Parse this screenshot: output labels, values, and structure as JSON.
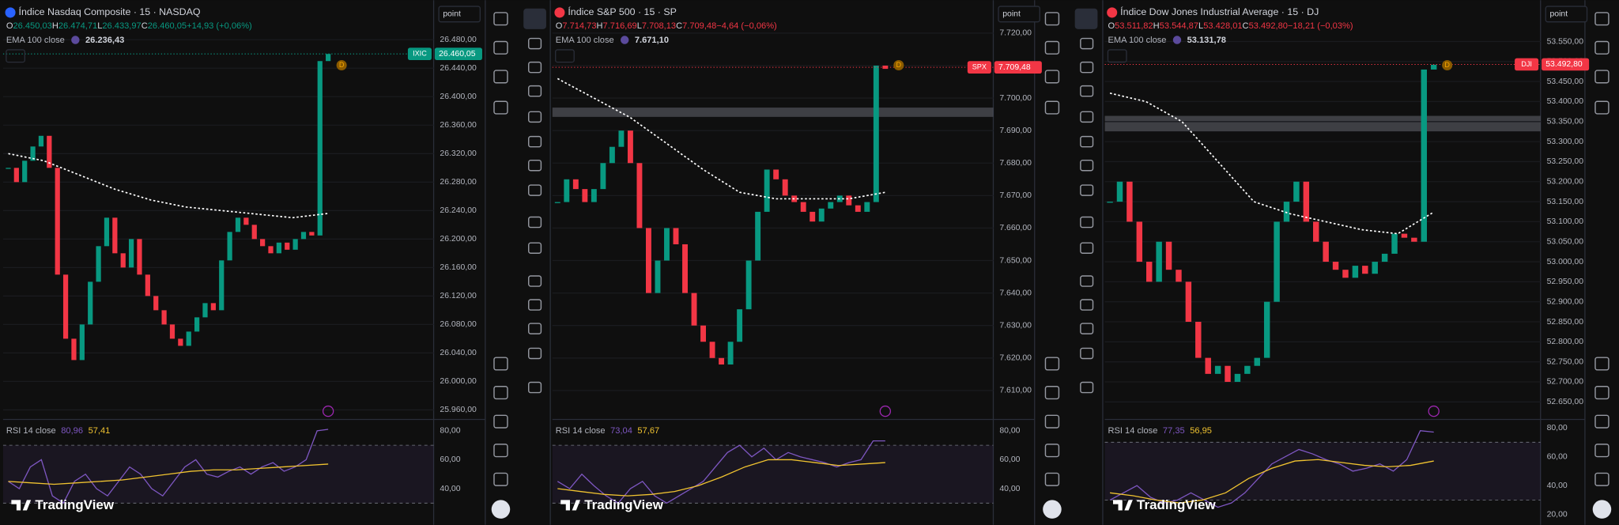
{
  "brand": "TradingView",
  "badge": "D",
  "panels": [
    {
      "title": "Índice Nasdaq Composite · 15 · NASDAQ",
      "ohlc": [
        {
          "label": "O",
          "value": "26.450,03"
        },
        {
          "label": "H",
          "value": "26.474,71"
        },
        {
          "label": "L",
          "value": "26.433,97"
        },
        {
          "label": "C",
          "value": "26.460,05"
        }
      ],
      "change": "+14,93 (+0,06%)",
      "change_color": "#089981",
      "ema_label": "EMA 100 close",
      "ema_value": "26.236,43",
      "symbol_tag": "IXIC",
      "tag_color": "#089981",
      "last_price": {
        "value": 26460.05,
        "label": "26.460,05"
      },
      "interval_button": "point",
      "price_axis": {
        "lim": [
          25948,
          26492
        ],
        "ticks": [
          {
            "value": 26480,
            "label": "26.480,00"
          },
          {
            "value": 26440,
            "label": "26.440,00"
          },
          {
            "value": 26400,
            "label": "26.400,00"
          },
          {
            "value": 26360,
            "label": "26.360,00"
          },
          {
            "value": 26320,
            "label": "26.320,00"
          },
          {
            "value": 26280,
            "label": "26.280,00"
          },
          {
            "value": 26240,
            "label": "26.240,00"
          },
          {
            "value": 26200,
            "label": "26.200,00"
          },
          {
            "value": 26160,
            "label": "26.160,00"
          },
          {
            "value": 26120,
            "label": "26.120,00"
          },
          {
            "value": 26080,
            "label": "26.080,00"
          },
          {
            "value": 26040,
            "label": "26.040,00"
          },
          {
            "value": 26000,
            "label": "26.000,00"
          },
          {
            "value": 25960,
            "label": "25.960,00"
          }
        ]
      },
      "closes": [
        26300,
        26280,
        26310,
        26330,
        26345,
        26300,
        26150,
        26060,
        26030,
        26080,
        26140,
        26190,
        26230,
        26180,
        26160,
        26200,
        26150,
        26120,
        26100,
        26080,
        26060,
        26050,
        26070,
        26090,
        26110,
        26100,
        26170,
        26210,
        26230,
        26220,
        26200,
        26190,
        26180,
        26195,
        26185,
        26200,
        26210,
        26205,
        26450,
        26460
      ],
      "ema": [
        26320,
        26310,
        26290,
        26270,
        26255,
        26245,
        26240,
        26235,
        26230,
        26236
      ],
      "rsi_label": "RSI 14 close",
      "rsi_value": "80,96",
      "rsi_ma_value": "57,41",
      "rsi_axis": {
        "lim": [
          20.7,
          86.4
        ],
        "ticks": [
          {
            "value": 80,
            "label": "80,00"
          },
          {
            "value": 60,
            "label": "60,00"
          },
          {
            "value": 40,
            "label": "40,00"
          }
        ]
      },
      "rsi_bands": [
        70,
        30
      ],
      "rsi": [
        45,
        40,
        55,
        60,
        35,
        30,
        45,
        50,
        40,
        35,
        45,
        55,
        50,
        40,
        35,
        45,
        55,
        60,
        50,
        48,
        52,
        55,
        50,
        55,
        58,
        52,
        55,
        60,
        80,
        81
      ],
      "rsi_ma": [
        45,
        44,
        43,
        44,
        45,
        46,
        48,
        50,
        52,
        53,
        53,
        54,
        55,
        56,
        57
      ]
    },
    {
      "title": "Índice S&P 500 · 15 · SP",
      "ohlc": [
        {
          "label": "O",
          "value": "7.714,73"
        },
        {
          "label": "H",
          "value": "7.716,69"
        },
        {
          "label": "L",
          "value": "7.708,13"
        },
        {
          "label": "C",
          "value": "7.709,48"
        }
      ],
      "change": "−4,64 (−0,06%)",
      "change_color": "#f23645",
      "ema_label": "EMA 100 close",
      "ema_value": "7.671,10",
      "symbol_tag": "SPX",
      "tag_color": "#f23645",
      "last_price": {
        "value": 7709.48,
        "label": "7.709,48"
      },
      "interval_button": "point",
      "price_axis": {
        "lim": [
          7601.4,
          7720.6
        ],
        "ticks": [
          {
            "value": 7720,
            "label": "7.720,00"
          },
          {
            "value": 7710,
            "label": "7.710,00"
          },
          {
            "value": 7700,
            "label": "7.700,00"
          },
          {
            "value": 7690,
            "label": "7.690,00"
          },
          {
            "value": 7680,
            "label": "7.680,00"
          },
          {
            "value": 7670,
            "label": "7.670,00"
          },
          {
            "value": 7660,
            "label": "7.660,00"
          },
          {
            "value": 7650,
            "label": "7.650,00"
          },
          {
            "value": 7640,
            "label": "7.640,00"
          },
          {
            "value": 7630,
            "label": "7.630,00"
          },
          {
            "value": 7620,
            "label": "7.620,00"
          },
          {
            "value": 7610,
            "label": "7.610,00"
          }
        ]
      },
      "closes": [
        7668,
        7675,
        7672,
        7668,
        7672,
        7680,
        7685,
        7690,
        7680,
        7660,
        7640,
        7650,
        7660,
        7655,
        7640,
        7630,
        7625,
        7620,
        7618,
        7625,
        7635,
        7650,
        7665,
        7678,
        7675,
        7670,
        7668,
        7665,
        7662,
        7666,
        7668,
        7670,
        7667,
        7665,
        7668,
        7710,
        7709
      ],
      "ema": [
        7706,
        7700,
        7694,
        7686,
        7678,
        7671,
        7669,
        7669,
        7669,
        7671
      ],
      "rsi_label": "RSI 14 close",
      "rsi_value": "73,04",
      "rsi_ma_value": "57,67",
      "rsi_axis": {
        "lim": [
          20.7,
          86.4
        ],
        "ticks": [
          {
            "value": 80,
            "label": "80,00"
          },
          {
            "value": 60,
            "label": "60,00"
          },
          {
            "value": 40,
            "label": "40,00"
          }
        ]
      },
      "rsi_bands": [
        70,
        30
      ],
      "rsi": [
        45,
        40,
        50,
        42,
        35,
        30,
        40,
        45,
        35,
        30,
        35,
        40,
        45,
        55,
        65,
        70,
        62,
        68,
        60,
        65,
        62,
        60,
        58,
        55,
        58,
        60,
        73,
        73
      ],
      "rsi_ma": [
        40,
        38,
        36,
        35,
        36,
        38,
        42,
        48,
        55,
        60,
        60,
        58,
        56,
        57,
        58
      ]
    },
    {
      "title": "Índice Dow Jones Industrial Average · 15 · DJ",
      "ohlc": [
        {
          "label": "O",
          "value": "53.511,82"
        },
        {
          "label": "H",
          "value": "53.544,87"
        },
        {
          "label": "L",
          "value": "53.428,01"
        },
        {
          "label": "C",
          "value": "53.492,80"
        }
      ],
      "change": "−18,21 (−0,03%)",
      "change_color": "#f23645",
      "ema_label": "EMA 100 close",
      "ema_value": "53.131,78",
      "symbol_tag": "DJI",
      "tag_color": "#f23645",
      "last_price": {
        "value": 53492.8,
        "label": "53.492,80"
      },
      "interval_button": "point",
      "price_axis": {
        "lim": [
          52608.7,
          53575.8
        ],
        "ticks": [
          {
            "value": 53550,
            "label": "53.550,00"
          },
          {
            "value": 53500,
            "label": "53.500,00"
          },
          {
            "value": 53450,
            "label": "53.450,00"
          },
          {
            "value": 53400,
            "label": "53.400,00"
          },
          {
            "value": 53350,
            "label": "53.350,00"
          },
          {
            "value": 53300,
            "label": "53.300,00"
          },
          {
            "value": 53250,
            "label": "53.250,00"
          },
          {
            "value": 53200,
            "label": "53.200,00"
          },
          {
            "value": 53150,
            "label": "53.150,00"
          },
          {
            "value": 53100,
            "label": "53.100,00"
          },
          {
            "value": 53050,
            "label": "53.050,00"
          },
          {
            "value": 53000,
            "label": "53.000,00"
          },
          {
            "value": 52950,
            "label": "52.950,00"
          },
          {
            "value": 52900,
            "label": "52.900,00"
          },
          {
            "value": 52850,
            "label": "52.850,00"
          },
          {
            "value": 52800,
            "label": "52.800,00"
          },
          {
            "value": 52750,
            "label": "52.750,00"
          },
          {
            "value": 52700,
            "label": "52.700,00"
          },
          {
            "value": 52650,
            "label": "52.650,00"
          }
        ]
      },
      "closes": [
        53150,
        53200,
        53100,
        53000,
        52950,
        53050,
        52980,
        52950,
        52850,
        52760,
        52720,
        52740,
        52700,
        52720,
        52740,
        52760,
        52900,
        53100,
        53150,
        53200,
        53100,
        53050,
        53000,
        52980,
        52960,
        52990,
        52970,
        53000,
        53020,
        53070,
        53060,
        53050,
        53480,
        53492
      ],
      "ema": [
        53421,
        53400,
        53350,
        53250,
        53150,
        53120,
        53100,
        53080,
        53070,
        53124
      ],
      "rsi_label": "RSI 14 close",
      "rsi_value": "77,35",
      "rsi_ma_value": "56,95",
      "rsi_axis": {
        "lim": [
          18.6,
          84.3
        ],
        "ticks": [
          {
            "value": 80,
            "label": "80,00"
          },
          {
            "value": 60,
            "label": "60,00"
          },
          {
            "value": 40,
            "label": "40,00"
          },
          {
            "value": 20,
            "label": "20,00"
          }
        ]
      },
      "rsi_bands": [
        70,
        30
      ],
      "rsi": [
        30,
        35,
        40,
        32,
        28,
        30,
        35,
        30,
        25,
        28,
        35,
        45,
        55,
        60,
        65,
        62,
        58,
        55,
        50,
        52,
        55,
        50,
        58,
        78,
        77
      ],
      "rsi_ma": [
        35,
        33,
        30,
        28,
        30,
        35,
        45,
        52,
        57,
        58,
        56,
        54,
        53,
        54,
        57
      ]
    }
  ]
}
